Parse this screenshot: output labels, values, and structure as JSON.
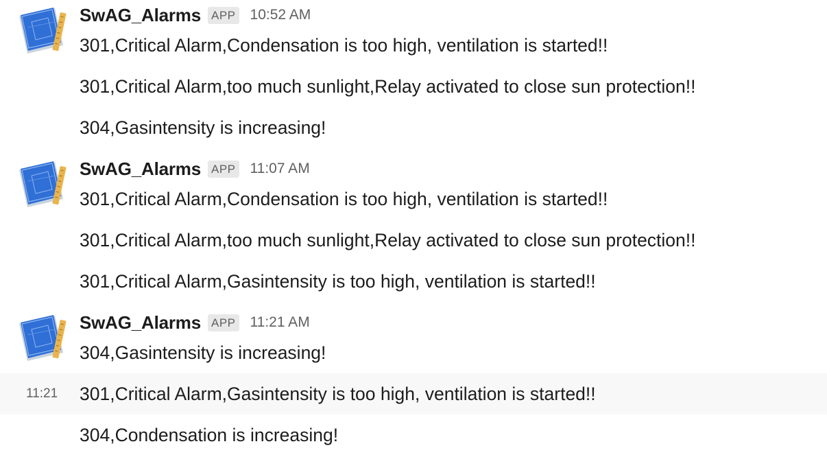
{
  "channel": {
    "groups": [
      {
        "sender": "SwAG_Alarms",
        "badge": "APP",
        "time": "10:52 AM",
        "avatar_icon": "blueprint-ruler-icon",
        "messages": [
          "301,Critical Alarm,Condensation is too high, ventilation is started!!",
          "301,Critical Alarm,too much sunlight,Relay activated to close sun protection!!",
          "304,Gasintensity is increasing!"
        ]
      },
      {
        "sender": "SwAG_Alarms",
        "badge": "APP",
        "time": "11:07 AM",
        "avatar_icon": "blueprint-ruler-icon",
        "messages": [
          "301,Critical Alarm,Condensation is too high, ventilation is started!!",
          "301,Critical Alarm,too much sunlight,Relay activated to close sun protection!!",
          "301,Critical Alarm,Gasintensity is too high, ventilation is started!!"
        ]
      },
      {
        "sender": "SwAG_Alarms",
        "badge": "APP",
        "time": "11:21 AM",
        "avatar_icon": "blueprint-ruler-icon",
        "messages": [
          "304,Gasintensity is increasing!"
        ]
      }
    ],
    "followups": [
      {
        "hover_time": "11:21",
        "text": "301,Critical Alarm,Gasintensity is too high, ventilation is started!!"
      },
      {
        "hover_time": "",
        "text": "304,Condensation is increasing!"
      }
    ],
    "colors": {
      "text": "#1d1c1d",
      "muted": "#616061",
      "badge_bg": "#e8e8e8",
      "hover_bg": "#f8f8f8",
      "avatar_blue": "#2f6fd6",
      "avatar_ruler": "#e9b44c"
    }
  }
}
